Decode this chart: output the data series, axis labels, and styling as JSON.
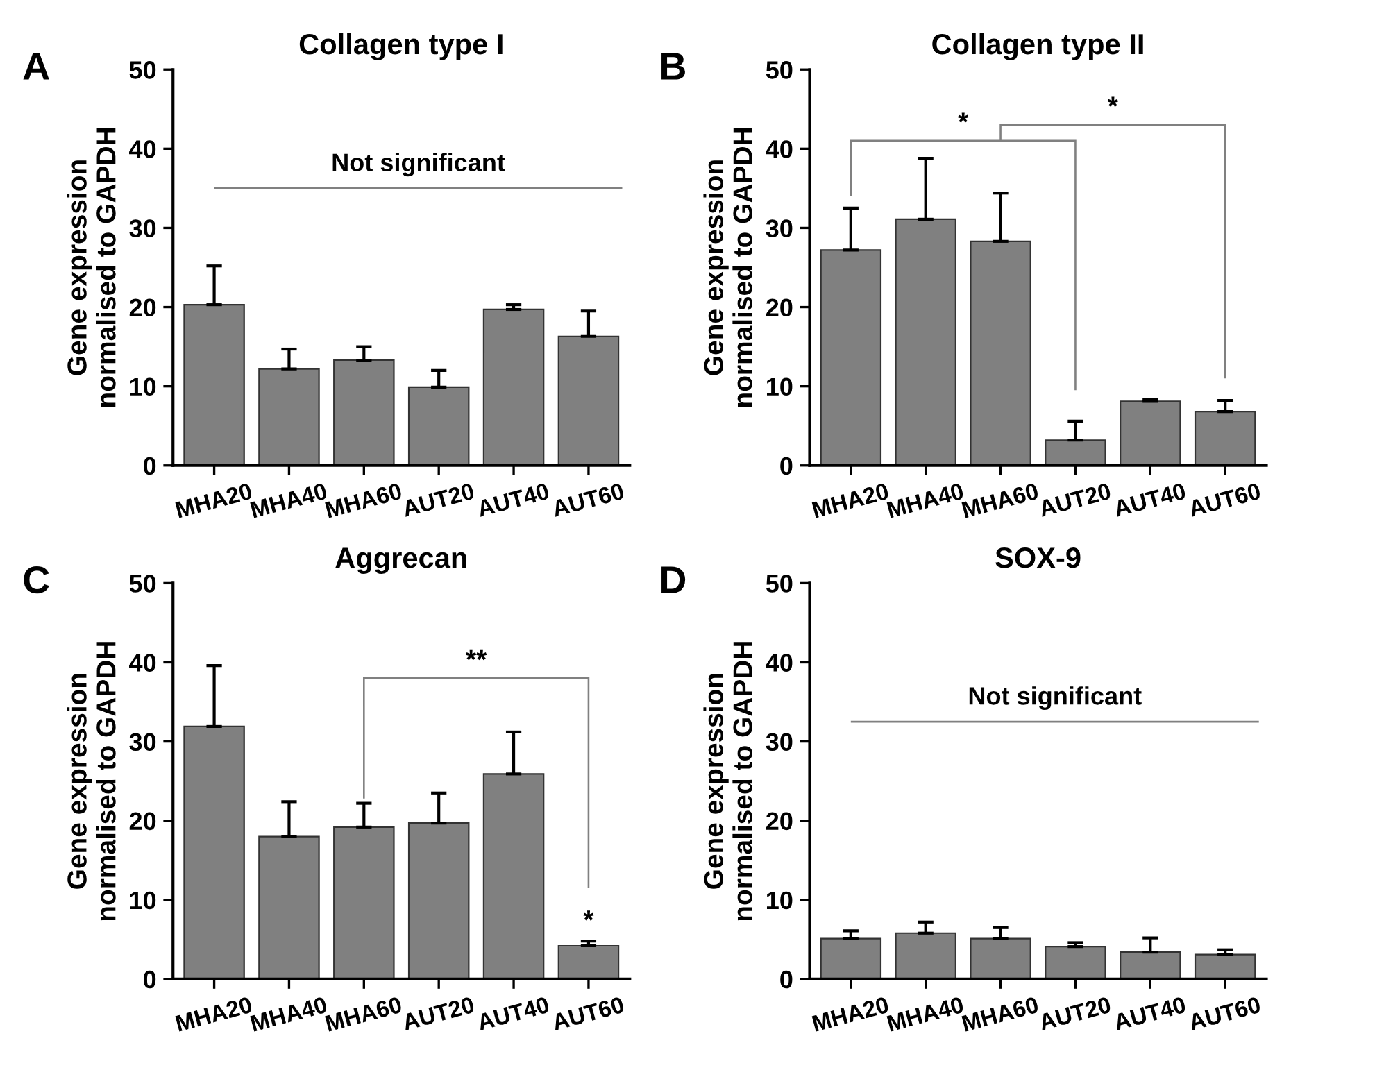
{
  "chart_data": [
    {
      "type": "bar",
      "title": "Collagen type I",
      "ylabel": "Gene expression\nnormalised to GAPDH",
      "categories": [
        "MHA20",
        "MHA40",
        "MHA60",
        "AUT20",
        "AUT40",
        "AUT60"
      ],
      "color": "#808080",
      "values": [
        20.3,
        12.2,
        13.3,
        9.9,
        19.7,
        16.3
      ],
      "errors": [
        [
          20.3,
          25.2
        ],
        [
          12.2,
          14.7
        ],
        [
          13.3,
          15.0
        ],
        [
          9.9,
          12.0
        ],
        [
          19.7,
          20.3
        ],
        [
          16.3,
          19.5
        ]
      ],
      "ylim": [
        0,
        50
      ],
      "yticks": [
        0,
        10,
        20,
        30,
        40,
        50
      ],
      "grid": false,
      "ref_lines": [
        {
          "axis": "y",
          "value": 35,
          "label": "Not significant",
          "color": "#808080"
        }
      ],
      "annotations": [
        "A"
      ]
    },
    {
      "type": "bar",
      "title": "Collagen type II",
      "ylabel": "Gene expression\nnormalised to GAPDH",
      "categories": [
        "MHA20",
        "MHA40",
        "MHA60",
        "AUT20",
        "AUT40",
        "AUT60"
      ],
      "color": "#808080",
      "values": [
        27.2,
        31.1,
        28.3,
        3.2,
        8.1,
        6.8
      ],
      "errors": [
        [
          27.2,
          32.5
        ],
        [
          31.1,
          38.8
        ],
        [
          28.3,
          34.4
        ],
        [
          3.2,
          5.6
        ],
        [
          8.1,
          8.3
        ],
        [
          6.8,
          8.2
        ]
      ],
      "ylim": [
        0,
        50
      ],
      "yticks": [
        0,
        10,
        20,
        30,
        40,
        50
      ],
      "grid": false,
      "annotations": [
        "B",
        "*",
        "*"
      ]
    },
    {
      "type": "bar",
      "title": "Aggrecan",
      "ylabel": "Gene expression\nnormalised to GAPDH",
      "categories": [
        "MHA20",
        "MHA40",
        "MHA60",
        "AUT20",
        "AUT40",
        "AUT60"
      ],
      "color": "#808080",
      "values": [
        31.9,
        18.0,
        19.2,
        19.7,
        25.9,
        4.2
      ],
      "errors": [
        [
          31.9,
          39.6
        ],
        [
          18.0,
          22.4
        ],
        [
          19.2,
          22.2
        ],
        [
          19.7,
          23.5
        ],
        [
          25.9,
          31.2
        ],
        [
          4.2,
          4.8
        ]
      ],
      "ylim": [
        0,
        50
      ],
      "yticks": [
        0,
        10,
        20,
        30,
        40,
        50
      ],
      "grid": false,
      "annotations": [
        "C",
        "**",
        "*"
      ]
    },
    {
      "type": "bar",
      "title": "SOX-9",
      "ylabel": "Gene expression\nnormalised to GAPDH",
      "categories": [
        "MHA20",
        "MHA40",
        "MHA60",
        "AUT20",
        "AUT40",
        "AUT60"
      ],
      "color": "#808080",
      "values": [
        5.1,
        5.8,
        5.1,
        4.1,
        3.4,
        3.1
      ],
      "errors": [
        [
          5.1,
          6.1
        ],
        [
          5.8,
          7.2
        ],
        [
          5.1,
          6.5
        ],
        [
          4.1,
          4.6
        ],
        [
          3.4,
          5.2
        ],
        [
          3.1,
          3.7
        ]
      ],
      "ylim": [
        0,
        50
      ],
      "yticks": [
        0,
        10,
        20,
        30,
        40,
        50
      ],
      "grid": false,
      "ref_lines": [
        {
          "axis": "y",
          "value": 32.5,
          "label": "Not significant",
          "color": "#808080"
        }
      ],
      "annotations": [
        "D"
      ]
    }
  ]
}
